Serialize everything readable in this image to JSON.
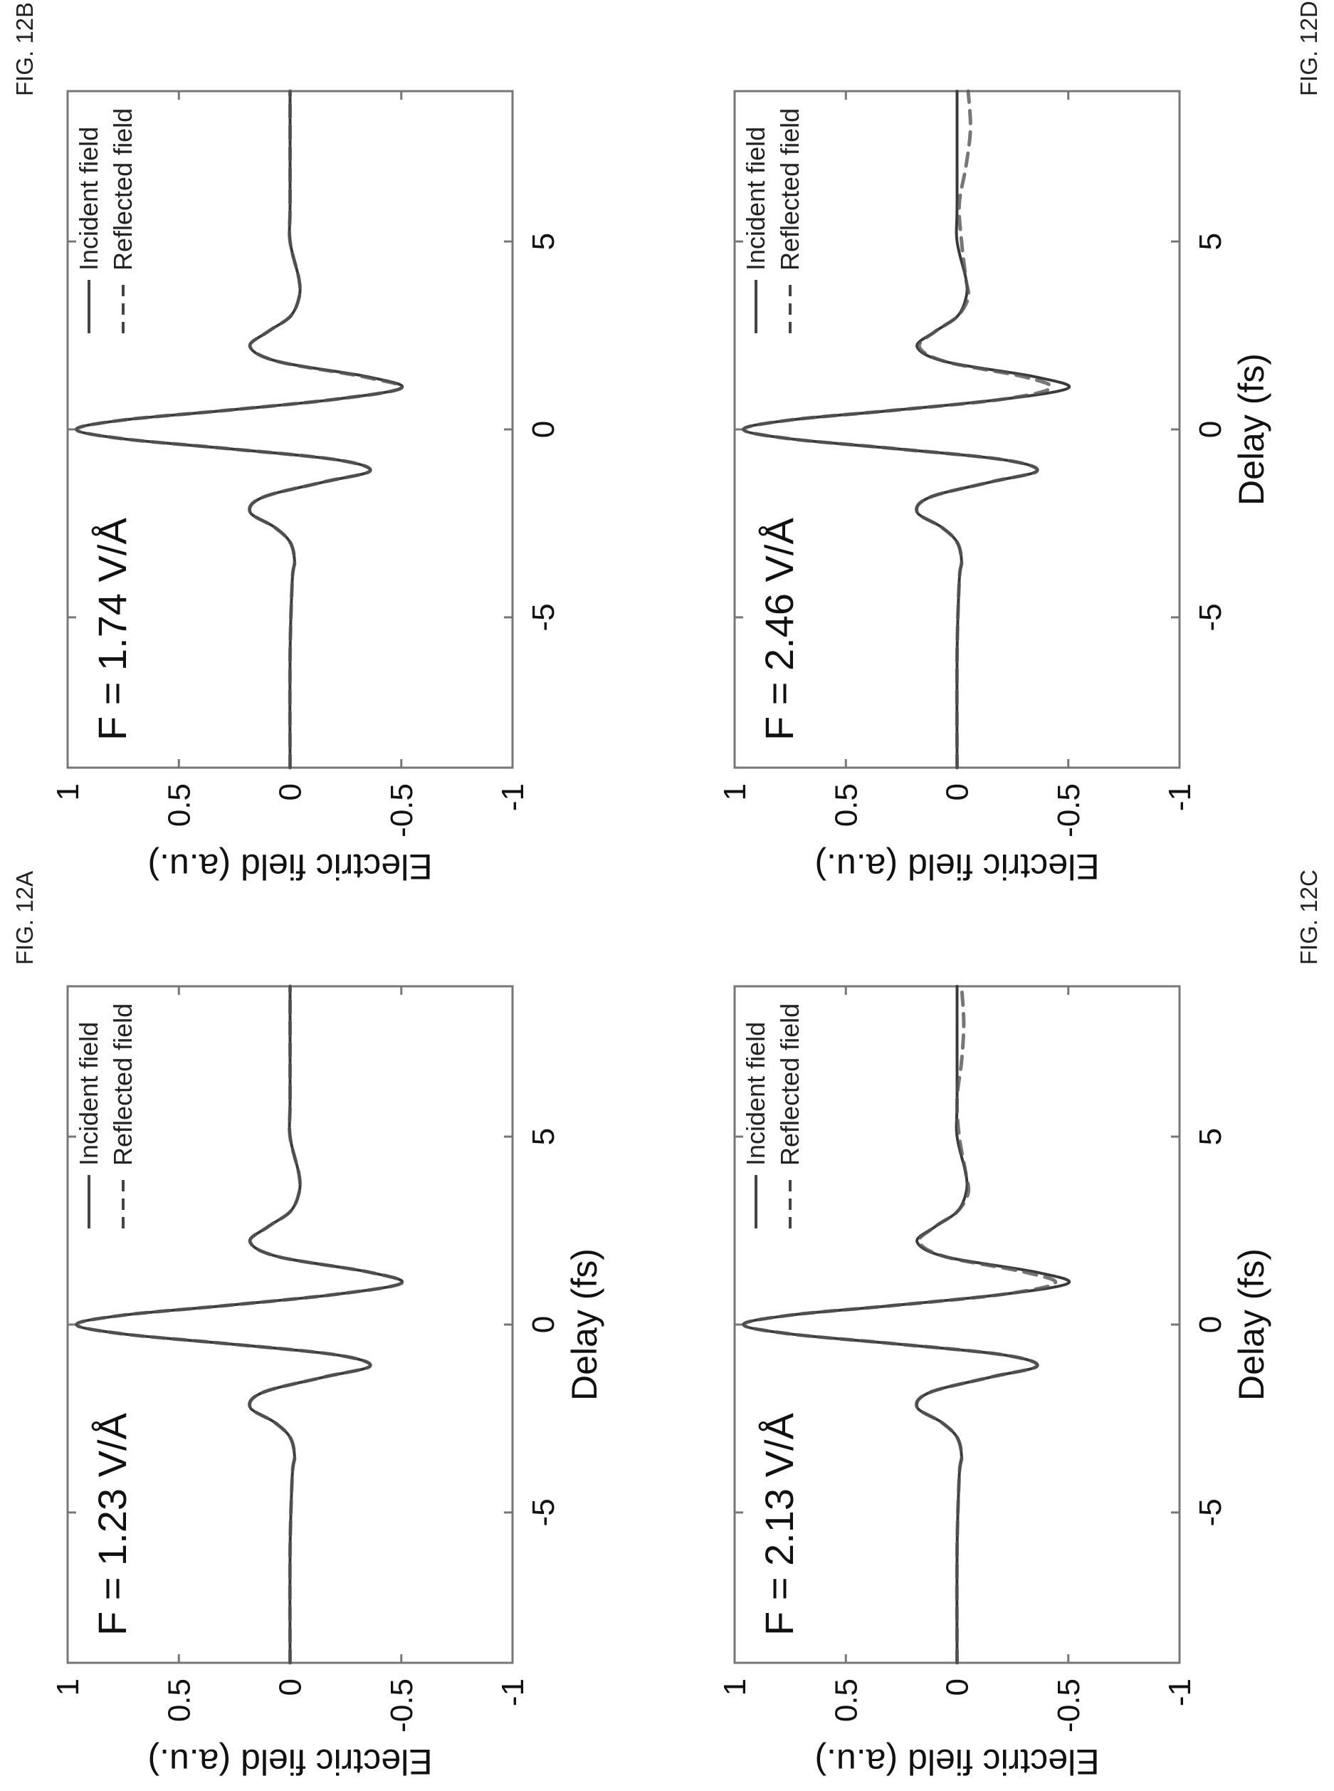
{
  "figure_labels": {
    "a": "FIG. 12A",
    "b": "FIG. 12B",
    "c": "FIG. 12C",
    "d": "FIG. 12D"
  },
  "chart_data": [
    {
      "id": "12A",
      "type": "line",
      "annotation": "F = 1.23 V/Å",
      "xlabel": "Delay (fs)",
      "ylabel": "Electric field (a.u.)",
      "xlim": [
        -9,
        9
      ],
      "ylim": [
        -1,
        1
      ],
      "xticks": [
        -5,
        0,
        5
      ],
      "xtick_labels": [
        "-5",
        "0",
        "5"
      ],
      "yticks": [
        1,
        0.5,
        0,
        -0.5,
        -1
      ],
      "ytick_labels": [
        "1",
        "0.5",
        "0",
        "-0.5",
        "-1"
      ],
      "legend": {
        "position": "top-right",
        "entries": [
          "Incident field",
          "Reflected field"
        ]
      },
      "series": [
        {
          "name": "Incident field",
          "style": "solid",
          "x": [
            -9,
            -6,
            -4,
            -3.5,
            -3,
            -2.6,
            -2.2,
            -1.8,
            -1.4,
            -1.1,
            -0.8,
            -0.5,
            -0.25,
            0,
            0.25,
            0.5,
            0.8,
            1.1,
            1.4,
            1.8,
            2.2,
            2.6,
            3,
            3.5,
            4,
            5,
            6,
            9
          ],
          "y": [
            0,
            0,
            -0.01,
            -0.02,
            0,
            0.07,
            0.18,
            0.12,
            -0.15,
            -0.36,
            -0.2,
            0.3,
            0.75,
            0.96,
            0.75,
            0.3,
            -0.2,
            -0.5,
            -0.35,
            0.05,
            0.18,
            0.1,
            0,
            -0.04,
            -0.04,
            0,
            0,
            0
          ]
        },
        {
          "name": "Reflected field",
          "style": "dashed",
          "x": [
            -9,
            -6,
            -4,
            -3.5,
            -3,
            -2.6,
            -2.2,
            -1.8,
            -1.4,
            -1.1,
            -0.8,
            -0.5,
            -0.25,
            0,
            0.25,
            0.5,
            0.8,
            1.1,
            1.4,
            1.8,
            2.2,
            2.6,
            3,
            3.5,
            4,
            5,
            6,
            9
          ],
          "y": [
            0,
            0,
            -0.01,
            -0.02,
            0,
            0.07,
            0.18,
            0.12,
            -0.15,
            -0.36,
            -0.2,
            0.3,
            0.75,
            0.96,
            0.75,
            0.3,
            -0.2,
            -0.5,
            -0.35,
            0.05,
            0.18,
            0.1,
            0,
            -0.04,
            -0.04,
            0,
            0,
            0
          ]
        }
      ]
    },
    {
      "id": "12B",
      "type": "line",
      "annotation": "F = 1.74 V/Å",
      "xlabel": "",
      "ylabel": "Electric field (a.u.)",
      "xlim": [
        -9,
        9
      ],
      "ylim": [
        -1,
        1
      ],
      "xticks": [
        -5,
        0,
        5
      ],
      "xtick_labels": [
        "-5",
        "0",
        "5"
      ],
      "yticks": [
        1,
        0.5,
        0,
        -0.5,
        -1
      ],
      "ytick_labels": [
        "1",
        "0.5",
        "0",
        "-0.5",
        "-1"
      ],
      "legend": {
        "position": "top-right",
        "entries": [
          "Incident field",
          "Reflected field"
        ]
      },
      "series": [
        {
          "name": "Incident field",
          "style": "solid",
          "x": [
            -9,
            -6,
            -4,
            -3.5,
            -3,
            -2.6,
            -2.2,
            -1.8,
            -1.4,
            -1.1,
            -0.8,
            -0.5,
            -0.25,
            0,
            0.25,
            0.5,
            0.8,
            1.1,
            1.4,
            1.8,
            2.2,
            2.6,
            3,
            3.5,
            4,
            5,
            6,
            9
          ],
          "y": [
            0,
            0,
            -0.01,
            -0.02,
            0,
            0.07,
            0.18,
            0.12,
            -0.15,
            -0.36,
            -0.2,
            0.3,
            0.75,
            0.96,
            0.75,
            0.3,
            -0.2,
            -0.5,
            -0.35,
            0.05,
            0.18,
            0.1,
            0,
            -0.04,
            -0.04,
            0,
            0,
            0
          ]
        },
        {
          "name": "Reflected field",
          "style": "dashed",
          "x": [
            -9,
            -6,
            -4,
            -3.5,
            -3,
            -2.6,
            -2.2,
            -1.8,
            -1.4,
            -1.1,
            -0.8,
            -0.5,
            -0.25,
            0,
            0.25,
            0.5,
            0.8,
            1.1,
            1.4,
            1.8,
            2.2,
            2.6,
            3,
            3.5,
            4,
            5,
            6,
            9
          ],
          "y": [
            0,
            0,
            -0.01,
            -0.02,
            0,
            0.07,
            0.18,
            0.12,
            -0.15,
            -0.36,
            -0.2,
            0.3,
            0.75,
            0.96,
            0.75,
            0.3,
            -0.2,
            -0.5,
            -0.33,
            0.05,
            0.18,
            0.1,
            0,
            -0.04,
            -0.04,
            0,
            0,
            0
          ]
        }
      ]
    },
    {
      "id": "12C",
      "type": "line",
      "annotation": "F = 2.13 V/Å",
      "xlabel": "Delay (fs)",
      "ylabel": "Electric field (a.u.)",
      "xlim": [
        -9,
        9
      ],
      "ylim": [
        -1,
        1
      ],
      "xticks": [
        -5,
        0,
        5
      ],
      "xtick_labels": [
        "-5",
        "0",
        "5"
      ],
      "yticks": [
        1,
        0.5,
        0,
        -0.5,
        -1
      ],
      "ytick_labels": [
        "1",
        "0.5",
        "0",
        "-0.5",
        "-1"
      ],
      "legend": {
        "position": "top-right",
        "entries": [
          "Incident field",
          "Reflected field"
        ]
      },
      "series": [
        {
          "name": "Incident field",
          "style": "solid",
          "x": [
            -9,
            -6,
            -4,
            -3.5,
            -3,
            -2.6,
            -2.2,
            -1.8,
            -1.4,
            -1.1,
            -0.8,
            -0.5,
            -0.25,
            0,
            0.25,
            0.5,
            0.8,
            1.1,
            1.4,
            1.8,
            2.2,
            2.6,
            3,
            3.5,
            4,
            5,
            6,
            9
          ],
          "y": [
            0,
            0,
            -0.01,
            -0.02,
            0,
            0.07,
            0.18,
            0.12,
            -0.15,
            -0.36,
            -0.2,
            0.3,
            0.75,
            0.96,
            0.75,
            0.3,
            -0.2,
            -0.5,
            -0.35,
            0.05,
            0.18,
            0.1,
            0,
            -0.04,
            -0.04,
            0,
            0,
            0
          ]
        },
        {
          "name": "Reflected field",
          "style": "dashed",
          "x": [
            -9,
            -6,
            -4,
            -3.5,
            -3,
            -2.6,
            -2.2,
            -1.8,
            -1.4,
            -1.1,
            -0.8,
            -0.5,
            -0.25,
            0,
            0.25,
            0.5,
            0.8,
            1.1,
            1.4,
            1.8,
            2.2,
            2.6,
            3,
            3.5,
            4,
            5,
            6,
            7,
            8,
            9
          ],
          "y": [
            0,
            0,
            -0.01,
            -0.02,
            0,
            0.07,
            0.18,
            0.12,
            -0.15,
            -0.36,
            -0.2,
            0.3,
            0.75,
            0.96,
            0.75,
            0.3,
            -0.2,
            -0.44,
            -0.3,
            0.05,
            0.17,
            0.1,
            0,
            -0.05,
            -0.04,
            -0.01,
            0,
            -0.02,
            -0.03,
            -0.02
          ]
        }
      ]
    },
    {
      "id": "12D",
      "type": "line",
      "annotation": "F = 2.46 V/Å",
      "xlabel": "Delay (fs)",
      "ylabel": "Electric field (a.u.)",
      "xlim": [
        -9,
        9
      ],
      "ylim": [
        -1,
        1
      ],
      "xticks": [
        -5,
        0,
        5
      ],
      "xtick_labels": [
        "-5",
        "0",
        "5"
      ],
      "yticks": [
        1,
        0.5,
        0,
        -0.5,
        -1
      ],
      "ytick_labels": [
        "1",
        "0.5",
        "0",
        "-0.5",
        "-1"
      ],
      "legend": {
        "position": "top-right",
        "entries": [
          "Incident field",
          "Reflected field"
        ]
      },
      "series": [
        {
          "name": "Incident field",
          "style": "solid",
          "x": [
            -9,
            -6,
            -4,
            -3.5,
            -3,
            -2.6,
            -2.2,
            -1.8,
            -1.4,
            -1.1,
            -0.8,
            -0.5,
            -0.25,
            0,
            0.25,
            0.5,
            0.8,
            1.1,
            1.4,
            1.8,
            2.2,
            2.6,
            3,
            3.5,
            4,
            5,
            6,
            9
          ],
          "y": [
            0,
            0,
            -0.01,
            -0.02,
            0,
            0.07,
            0.18,
            0.12,
            -0.15,
            -0.36,
            -0.2,
            0.3,
            0.75,
            0.96,
            0.75,
            0.3,
            -0.2,
            -0.5,
            -0.35,
            0.05,
            0.18,
            0.1,
            0,
            -0.04,
            -0.04,
            0,
            0,
            0
          ]
        },
        {
          "name": "Reflected field",
          "style": "dashed",
          "x": [
            -9,
            -6,
            -4,
            -3.5,
            -3,
            -2.6,
            -2.2,
            -1.8,
            -1.4,
            -1.1,
            -0.8,
            -0.5,
            -0.25,
            0,
            0.25,
            0.5,
            0.8,
            1.1,
            1.4,
            1.8,
            2.2,
            2.6,
            3,
            3.5,
            4,
            5,
            6,
            7,
            8,
            9
          ],
          "y": [
            0,
            0,
            -0.01,
            -0.02,
            0,
            0.07,
            0.18,
            0.12,
            -0.15,
            -0.36,
            -0.2,
            0.3,
            0.75,
            0.96,
            0.75,
            0.3,
            -0.2,
            -0.42,
            -0.3,
            0.05,
            0.17,
            0.1,
            0,
            -0.05,
            -0.04,
            -0.02,
            -0.01,
            -0.04,
            -0.06,
            -0.05
          ]
        }
      ]
    }
  ]
}
